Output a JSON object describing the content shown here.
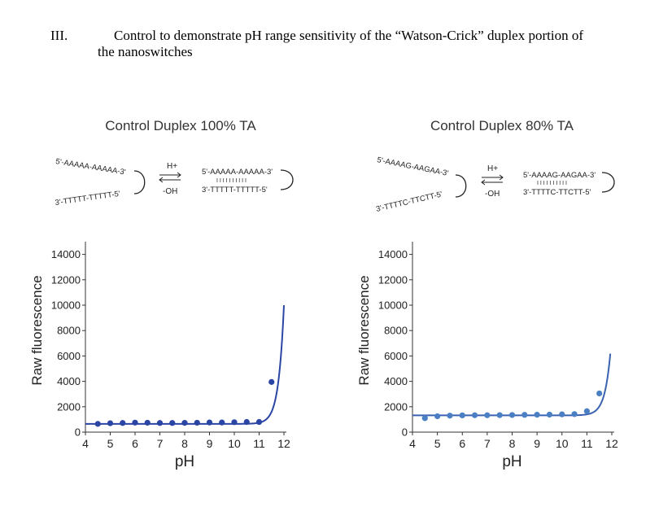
{
  "heading": {
    "number": "III.",
    "line1": "Control to demonstrate pH range sensitivity of the “Watson-Crick” duplex portion of",
    "line2": "the nanoswitches"
  },
  "panels": [
    {
      "title": "Control Duplex 100% TA",
      "scheme": {
        "open_top": "5'-AAAAA-AAAAA-3'",
        "open_bottom": "3'-TTTTT-TTTTT-5'",
        "acid": "H+",
        "base": "-OH",
        "closed_top": "5'-AAAAA-AAAAA-3'",
        "closed_bottom": "3'-TTTTT-TTTTT-5'",
        "pairs": "I I I I I  I I I I I"
      }
    },
    {
      "title": "Control Duplex 80% TA",
      "scheme": {
        "open_top": "5'-AAAAG-AAGAA-3'",
        "open_bottom": "3'-TTTTC-TTCTT-5'",
        "acid": "H+",
        "base": "-OH",
        "closed_top": "5'-AAAAG-AAGAA-3'",
        "closed_bottom": "3'-TTTTC-TTCTT-5'",
        "pairs": "I I I I I  I I I I I"
      }
    }
  ],
  "chart_data": [
    {
      "type": "scatter",
      "title": "Control Duplex 100% TA",
      "xlabel": "pH",
      "ylabel": "Raw fluorescence",
      "xlim": [
        4,
        12
      ],
      "ylim": [
        0,
        15000
      ],
      "xticks": [
        4,
        5,
        6,
        7,
        8,
        9,
        10,
        11,
        12
      ],
      "yticks": [
        0,
        2000,
        4000,
        6000,
        8000,
        10000,
        12000,
        14000
      ],
      "x": [
        4.5,
        5,
        5.5,
        6,
        6.5,
        7,
        7.5,
        8,
        8.5,
        9,
        9.5,
        10,
        10.5,
        11,
        11.5
      ],
      "y": [
        650,
        700,
        720,
        750,
        740,
        720,
        720,
        730,
        740,
        760,
        760,
        780,
        800,
        800,
        3950
      ],
      "fit": {
        "baseline": 650,
        "x_end": 12,
        "y_end": 10000,
        "rise_start": 10.0
      },
      "colors": {
        "points": "#2a45a4",
        "fit": "#2a45a4",
        "axes": "#333333"
      }
    },
    {
      "type": "scatter",
      "title": "Control Duplex 80% TA",
      "xlabel": "pH",
      "ylabel": "Raw fluorescence",
      "xlim": [
        4,
        12
      ],
      "ylim": [
        0,
        15000
      ],
      "xticks": [
        4,
        5,
        6,
        7,
        8,
        9,
        10,
        11,
        12
      ],
      "yticks": [
        0,
        2000,
        4000,
        6000,
        8000,
        10000,
        12000,
        14000
      ],
      "x": [
        4.5,
        5,
        5.5,
        6,
        6.5,
        7,
        7.5,
        8,
        8.5,
        9,
        9.5,
        10,
        10.5,
        11,
        11.5
      ],
      "y": [
        1100,
        1250,
        1300,
        1320,
        1330,
        1330,
        1340,
        1350,
        1360,
        1370,
        1380,
        1400,
        1420,
        1650,
        3050
      ],
      "fit": {
        "baseline": 1320,
        "x_end": 11.95,
        "y_end": 6400,
        "rise_start": 10.0
      },
      "colors": {
        "points": "#4a7fc4",
        "fit": "#3a62b0",
        "axes": "#333333"
      }
    }
  ]
}
